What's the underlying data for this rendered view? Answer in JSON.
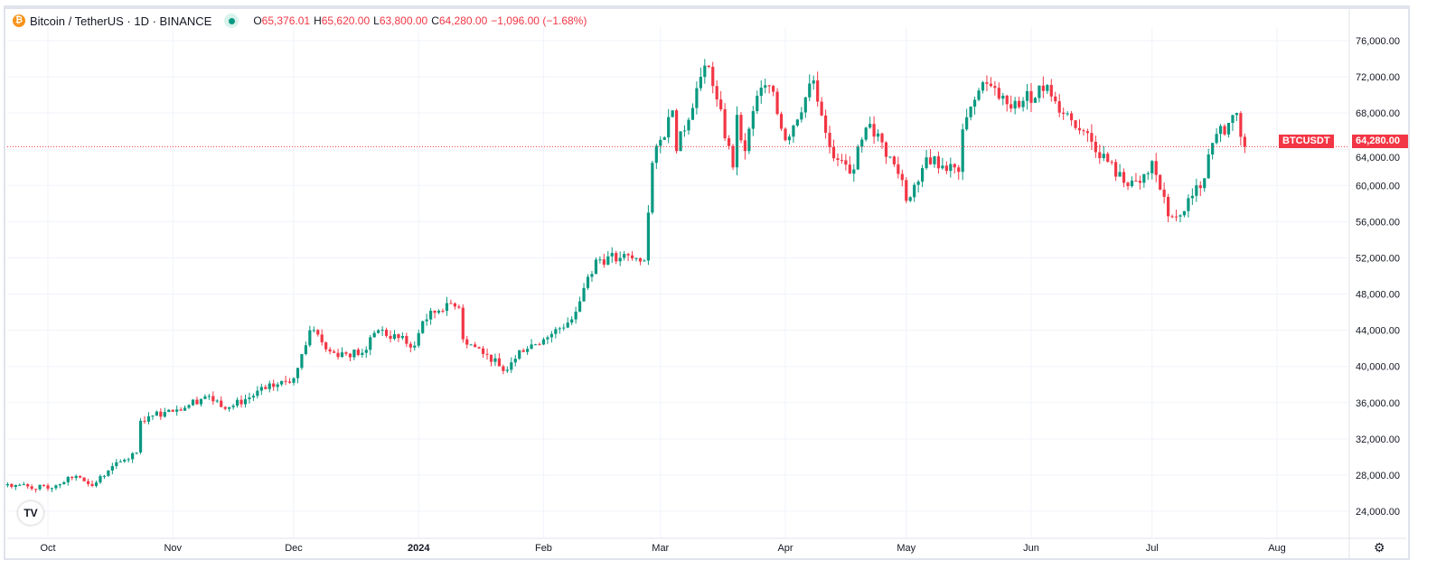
{
  "header": {
    "symbol": "Bitcoin / TetherUS · 1D · BINANCE",
    "open_label": "O",
    "open": "65,376.01",
    "high_label": "H",
    "high": "65,620.00",
    "low_label": "L",
    "low": "63,800.00",
    "close_label": "C",
    "close": "64,280.00",
    "change": "−1,096.00 (−1.68%)"
  },
  "colors": {
    "up": "#089981",
    "down": "#f23645"
  },
  "chart_data": {
    "type": "candlestick",
    "title": "Bitcoin / TetherUS · 1D · BINANCE",
    "ylim": [
      22000,
      78000
    ],
    "y_ticks": [
      "76,000.00",
      "72,000.00",
      "68,000.00",
      "64,000.00",
      "60,000.00",
      "56,000.00",
      "52,000.00",
      "48,000.00",
      "44,000.00",
      "40,000.00",
      "36,000.00",
      "32,000.00",
      "28,000.00",
      "24,000.00"
    ],
    "y_tick_values": [
      76000,
      72000,
      68000,
      64000,
      60000,
      56000,
      52000,
      48000,
      44000,
      40000,
      36000,
      32000,
      28000,
      24000
    ],
    "x_ticks": [
      "Oct",
      "Nov",
      "Dec",
      "2024",
      "Feb",
      "Mar",
      "Apr",
      "May",
      "Jun",
      "Jul",
      "Aug"
    ],
    "x_tick_dates": [
      "2023-10-01",
      "2023-11-01",
      "2023-12-01",
      "2024-01-01",
      "2024-02-01",
      "2024-03-01",
      "2024-04-01",
      "2024-05-01",
      "2024-06-01",
      "2024-07-01",
      "2024-08-01"
    ],
    "x_range": [
      "2023-09-21",
      "2024-08-19"
    ],
    "price_line": {
      "label": "BTCUSDT",
      "value": "64,280.00",
      "price": 64280
    },
    "approx_close_anchors": [
      [
        "2023-09-21",
        27000
      ],
      [
        "2023-10-01",
        26500
      ],
      [
        "2023-10-08",
        27900
      ],
      [
        "2023-10-12",
        26800
      ],
      [
        "2023-10-16",
        28500
      ],
      [
        "2023-10-20",
        29700
      ],
      [
        "2023-10-23",
        30500
      ],
      [
        "2023-10-24",
        34000
      ],
      [
        "2023-10-26",
        34500
      ],
      [
        "2023-11-01",
        35000
      ],
      [
        "2023-11-09",
        36700
      ],
      [
        "2023-11-15",
        35500
      ],
      [
        "2023-11-24",
        37500
      ],
      [
        "2023-12-01",
        38700
      ],
      [
        "2023-12-05",
        44000
      ],
      [
        "2023-12-11",
        41500
      ],
      [
        "2023-12-18",
        41500
      ],
      [
        "2023-12-22",
        44000
      ],
      [
        "2023-12-31",
        42300
      ],
      [
        "2024-01-02",
        45000
      ],
      [
        "2024-01-08",
        47000
      ],
      [
        "2024-01-11",
        46500
      ],
      [
        "2024-01-12",
        43000
      ],
      [
        "2024-01-18",
        41300
      ],
      [
        "2024-01-22",
        39500
      ],
      [
        "2024-01-26",
        41800
      ],
      [
        "2024-02-01",
        43000
      ],
      [
        "2024-02-08",
        45200
      ],
      [
        "2024-02-12",
        49900
      ],
      [
        "2024-02-14",
        51800
      ],
      [
        "2024-02-20",
        52000
      ],
      [
        "2024-02-26",
        51700
      ],
      [
        "2024-02-27",
        57000
      ],
      [
        "2024-02-28",
        62500
      ],
      [
        "2024-03-04",
        68300
      ],
      [
        "2024-03-05",
        63800
      ],
      [
        "2024-03-11",
        72000
      ],
      [
        "2024-03-13",
        73100
      ],
      [
        "2024-03-15",
        69500
      ],
      [
        "2024-03-19",
        62000
      ],
      [
        "2024-03-20",
        67800
      ],
      [
        "2024-03-22",
        63800
      ],
      [
        "2024-03-25",
        69900
      ],
      [
        "2024-03-28",
        71000
      ],
      [
        "2024-04-01",
        65000
      ],
      [
        "2024-04-08",
        71600
      ],
      [
        "2024-04-13",
        63000
      ],
      [
        "2024-04-17",
        61300
      ],
      [
        "2024-04-22",
        66800
      ],
      [
        "2024-04-30",
        60600
      ],
      [
        "2024-05-01",
        58300
      ],
      [
        "2024-05-06",
        63100
      ],
      [
        "2024-05-14",
        61500
      ],
      [
        "2024-05-15",
        66200
      ],
      [
        "2024-05-20",
        71400
      ],
      [
        "2024-05-27",
        68500
      ],
      [
        "2024-06-05",
        71100
      ],
      [
        "2024-06-07",
        69300
      ],
      [
        "2024-06-14",
        66000
      ],
      [
        "2024-06-24",
        60300
      ],
      [
        "2024-06-28",
        60300
      ],
      [
        "2024-07-01",
        62700
      ],
      [
        "2024-07-05",
        56600
      ],
      [
        "2024-07-08",
        56700
      ],
      [
        "2024-07-14",
        60800
      ],
      [
        "2024-07-16",
        64700
      ],
      [
        "2024-07-22",
        68000
      ],
      [
        "2024-07-23",
        65376
      ],
      [
        "2024-07-24",
        64280
      ]
    ]
  },
  "logo_text": "TV"
}
